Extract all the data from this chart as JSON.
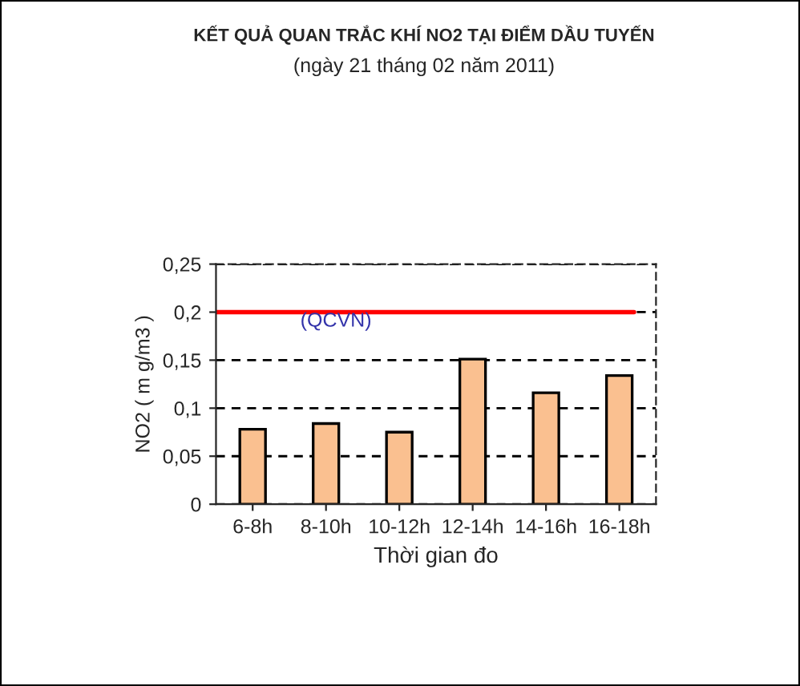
{
  "chart_data": {
    "type": "bar",
    "title": "KẾT QUẢ QUAN TRẮC KHÍ NO2 TẠI ĐIỂM DẦU TUYẾN",
    "subtitle": "(ngày 21 tháng 02 năm 2011)",
    "xlabel": "Thời gian đo",
    "ylabel": "NO2 ( m g/m3 )",
    "categories": [
      "6-8h",
      "8-10h",
      "10-12h",
      "12-14h",
      "14-16h",
      "16-18h"
    ],
    "values": [
      0.078,
      0.084,
      0.075,
      0.151,
      0.116,
      0.134
    ],
    "color": "#fac090",
    "ylim": [
      0,
      0.25
    ],
    "yticks": [
      {
        "value": 0,
        "label": "0"
      },
      {
        "value": 0.05,
        "label": "0,05"
      },
      {
        "value": 0.1,
        "label": "0,1"
      },
      {
        "value": 0.15,
        "label": "0,15"
      },
      {
        "value": 0.2,
        "label": "0,2"
      },
      {
        "value": 0.25,
        "label": "0,25"
      }
    ],
    "ref_lines": [
      {
        "axis": "y",
        "value": 0.2,
        "label": "(QCVN)",
        "color": "#ff0000"
      }
    ],
    "grid": "y"
  }
}
